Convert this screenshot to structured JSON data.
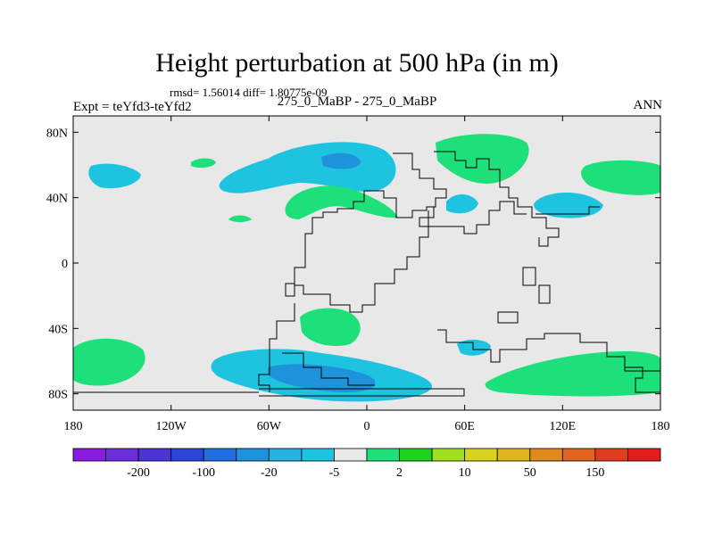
{
  "title": "Height perturbation at 500 hPa (in m)",
  "stats": "rmsd= 1.56014 diff= 1.80775e-09",
  "left_label": "Expt = teYfd3-teYfd2",
  "center_label": "275_0_MaBP - 275_0_MaBP",
  "right_label": "ANN",
  "axes": {
    "lon_ticks": [
      "180",
      "120W",
      "60W",
      "0",
      "60E",
      "120E",
      "180"
    ],
    "lat_ticks": [
      "80N",
      "40N",
      "0",
      "40S",
      "80S"
    ]
  },
  "colorbar": {
    "colors": [
      "#8a1be0",
      "#6a2fd8",
      "#4b34d4",
      "#2a45d8",
      "#1e6ee0",
      "#1e93dc",
      "#29b2e0",
      "#1ec3e0",
      "#e8e8e8",
      "#1ee07a",
      "#1ed21e",
      "#a0e01e",
      "#d6d21e",
      "#e0b41e",
      "#e08a1e",
      "#e0641e",
      "#e03c1e",
      "#e01e1e"
    ],
    "labels": [
      "-200",
      "-100",
      "-20",
      "-5",
      "2",
      "10",
      "50",
      "150"
    ]
  },
  "fill_colors": {
    "light_blue": "#1ec3e0",
    "mid_blue": "#1e93dc",
    "green": "#1ee07a",
    "land_bg": "#e8e8e8"
  }
}
